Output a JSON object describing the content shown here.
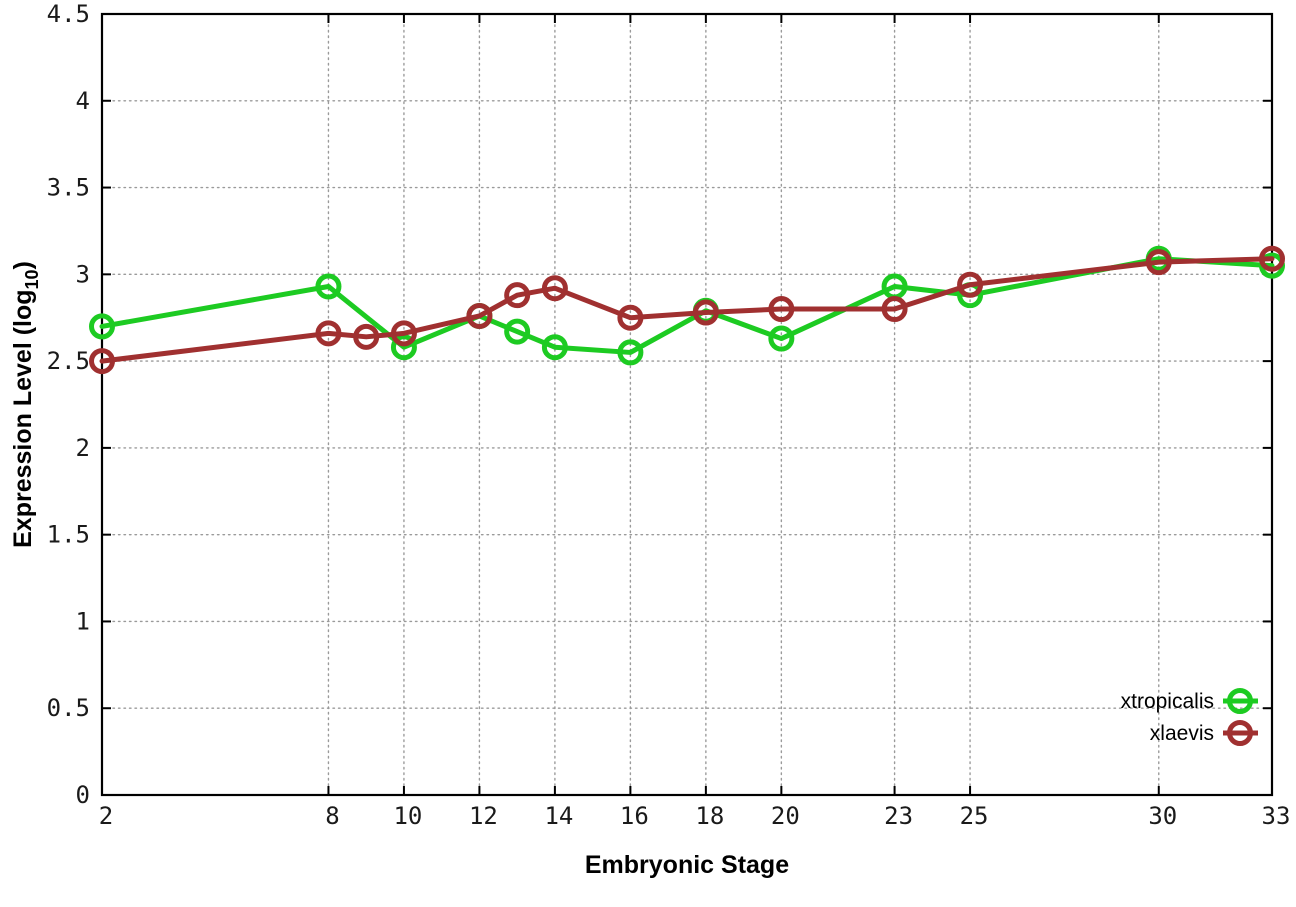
{
  "chart_data": {
    "type": "line",
    "title": "",
    "xlabel": "Embryonic Stage",
    "ylabel": {
      "prefix": "Expression Level (log",
      "subscript": "10",
      "suffix": ")"
    },
    "xlim": [
      2,
      33
    ],
    "ylim": [
      0,
      4.5
    ],
    "x_ticks": [
      2,
      8,
      10,
      12,
      14,
      16,
      18,
      20,
      23,
      25,
      30,
      33
    ],
    "y_ticks": [
      0,
      0.5,
      1,
      1.5,
      2,
      2.5,
      3,
      3.5,
      4,
      4.5
    ],
    "y_tick_labels": [
      "0",
      "0.5",
      "1",
      "1.5",
      "2",
      "2.5",
      "3",
      "3.5",
      "4",
      "4.5"
    ],
    "grid": true,
    "legend_position": "bottom-right",
    "marker": "open-circle",
    "series": [
      {
        "name": "xtropicalis",
        "color": "#1dcb22",
        "x": [
          2,
          8,
          10,
          12,
          13,
          14,
          16,
          18,
          20,
          23,
          25,
          30,
          33
        ],
        "y": [
          2.7,
          2.93,
          2.58,
          2.76,
          2.67,
          2.58,
          2.55,
          2.79,
          2.63,
          2.93,
          2.88,
          3.09,
          3.05
        ]
      },
      {
        "name": "xlaevis",
        "color": "#a03030",
        "x": [
          2,
          8,
          9,
          10,
          12,
          13,
          14,
          16,
          18,
          20,
          23,
          25,
          30,
          33
        ],
        "y": [
          2.5,
          2.66,
          2.64,
          2.66,
          2.76,
          2.88,
          2.92,
          2.75,
          2.78,
          2.8,
          2.8,
          2.94,
          3.07,
          3.09
        ]
      }
    ],
    "colors": {
      "background": "#ffffff",
      "border": "#000000",
      "grid": "#9a9a9a",
      "text": "#000000"
    }
  }
}
